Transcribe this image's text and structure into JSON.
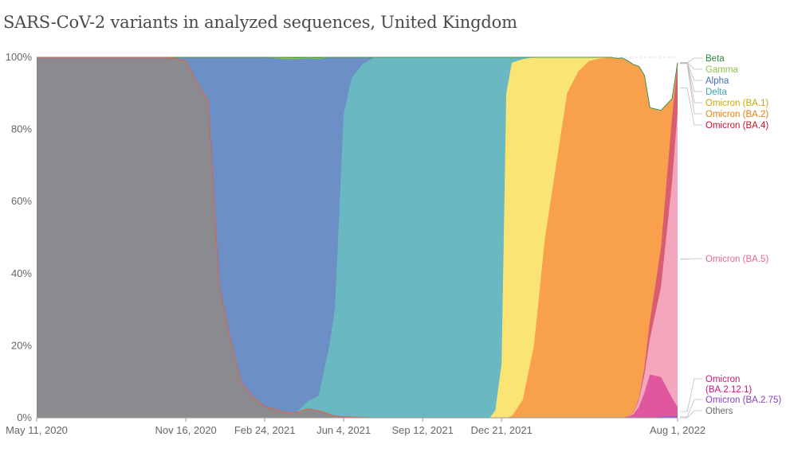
{
  "title": "SARS-CoV-2 variants in analyzed sequences, United Kingdom",
  "chart_data": {
    "type": "area",
    "stacked": true,
    "normalized": true,
    "title": "SARS-CoV-2 variants in analyzed sequences, United Kingdom",
    "y_ticks": [
      "0%",
      "20%",
      "40%",
      "60%",
      "80%",
      "100%"
    ],
    "ylim": [
      0,
      100
    ],
    "x_ticks": [
      {
        "date": "2020-05-11",
        "label": "May 11, 2020"
      },
      {
        "date": "2020-11-16",
        "label": "Nov 16, 2020"
      },
      {
        "date": "2021-02-24",
        "label": "Feb 24, 2021"
      },
      {
        "date": "2021-06-04",
        "label": "Jun 4, 2021"
      },
      {
        "date": "2021-09-12",
        "label": "Sep 12, 2021"
      },
      {
        "date": "2021-12-21",
        "label": "Dec 21, 2021"
      },
      {
        "date": "2022-08-01",
        "label": "Aug 1, 2022"
      }
    ],
    "xlim": [
      "2020-05-11",
      "2022-08-01"
    ],
    "grid": true,
    "legend_position": "right",
    "x": [
      "2020-05-11",
      "2020-06-22",
      "2020-08-03",
      "2020-09-14",
      "2020-10-26",
      "2020-11-16",
      "2020-11-30",
      "2020-12-14",
      "2020-12-28",
      "2021-01-11",
      "2021-01-25",
      "2021-02-08",
      "2021-02-24",
      "2021-03-08",
      "2021-03-22",
      "2021-04-05",
      "2021-04-19",
      "2021-05-03",
      "2021-05-17",
      "2021-05-24",
      "2021-06-04",
      "2021-06-14",
      "2021-06-28",
      "2021-07-12",
      "2021-07-26",
      "2021-08-09",
      "2021-09-12",
      "2021-10-25",
      "2021-11-22",
      "2021-12-06",
      "2021-12-13",
      "2021-12-21",
      "2021-12-27",
      "2022-01-03",
      "2022-01-17",
      "2022-01-31",
      "2022-02-14",
      "2022-02-28",
      "2022-03-14",
      "2022-03-28",
      "2022-04-11",
      "2022-04-25",
      "2022-05-09",
      "2022-05-16",
      "2022-05-23",
      "2022-05-30",
      "2022-06-06",
      "2022-06-13",
      "2022-06-20",
      "2022-06-27",
      "2022-07-11",
      "2022-07-25",
      "2022-08-01"
    ],
    "series": [
      {
        "name": "Others",
        "color": "#8b8b8f",
        "values": [
          100,
          100,
          100,
          100,
          100,
          99,
          93,
          88,
          37,
          22,
          10,
          6,
          3,
          2.5,
          1.5,
          1.5,
          2.5,
          2,
          1,
          0.5,
          0.3,
          0.2,
          0.1,
          0,
          0,
          0,
          0,
          0,
          0,
          0,
          0,
          0,
          0,
          0,
          0,
          0,
          0,
          0,
          0,
          0,
          0,
          0,
          0,
          0,
          0,
          0,
          0,
          0,
          0,
          0,
          0,
          0,
          0
        ]
      },
      {
        "name": "Omicron (BA.2.75)",
        "color": "#9b59d0",
        "values": [
          0,
          0,
          0,
          0,
          0,
          0,
          0,
          0,
          0,
          0,
          0,
          0,
          0,
          0,
          0,
          0,
          0,
          0,
          0,
          0,
          0,
          0,
          0,
          0,
          0,
          0,
          0,
          0,
          0,
          0,
          0,
          0,
          0,
          0,
          0,
          0,
          0,
          0,
          0,
          0,
          0,
          0,
          0,
          0,
          0,
          0,
          0,
          0,
          0,
          0,
          0.3,
          0.5,
          0.5
        ]
      },
      {
        "name": "Omicron (BA.2.12.1)",
        "color": "#e0569f",
        "values": [
          0,
          0,
          0,
          0,
          0,
          0,
          0,
          0,
          0,
          0,
          0,
          0,
          0,
          0,
          0,
          0,
          0,
          0,
          0,
          0,
          0,
          0,
          0,
          0,
          0,
          0,
          0,
          0,
          0,
          0,
          0,
          0,
          0,
          0,
          0,
          0,
          0,
          0,
          0,
          0,
          0,
          0,
          0,
          0,
          0,
          0.3,
          1,
          3,
          7,
          12,
          11,
          5,
          2.5
        ]
      },
      {
        "name": "Omicron (BA.5)",
        "color": "#f4a6bd",
        "values": [
          0,
          0,
          0,
          0,
          0,
          0,
          0,
          0,
          0,
          0,
          0,
          0,
          0,
          0,
          0,
          0,
          0,
          0,
          0,
          0,
          0,
          0,
          0,
          0,
          0,
          0,
          0,
          0,
          0,
          0,
          0,
          0,
          0,
          0,
          0,
          0,
          0,
          0,
          0,
          0,
          0,
          0,
          0,
          0,
          0,
          0.2,
          0.5,
          2,
          5,
          10,
          25,
          60,
          82
        ]
      },
      {
        "name": "Omicron (BA.4)",
        "color": "#d95d70",
        "values": [
          0,
          0,
          0,
          0,
          0,
          0,
          0,
          0,
          0,
          0,
          0,
          0,
          0,
          0,
          0,
          0,
          0,
          0,
          0,
          0,
          0,
          0,
          0,
          0,
          0,
          0,
          0,
          0,
          0,
          0,
          0,
          0,
          0,
          0,
          0,
          0,
          0,
          0,
          0,
          0,
          0,
          0,
          0,
          0,
          0,
          0,
          0,
          0.5,
          2,
          5,
          11,
          18,
          13
        ]
      },
      {
        "name": "Omicron (BA.2)",
        "color": "#f8a04b",
        "values": [
          0,
          0,
          0,
          0,
          0,
          0,
          0,
          0,
          0,
          0,
          0,
          0,
          0,
          0,
          0,
          0,
          0,
          0,
          0,
          0,
          0,
          0,
          0,
          0,
          0,
          0,
          0,
          0,
          0,
          0,
          0,
          0,
          0,
          0.5,
          5,
          20,
          50,
          70,
          90,
          96,
          99,
          99.7,
          100,
          99.7,
          99.8,
          98.5,
          96.5,
          92,
          81,
          59,
          38,
          5,
          0.5
        ]
      },
      {
        "name": "Omicron (BA.1)",
        "color": "#fae474",
        "values": [
          0,
          0,
          0,
          0,
          0,
          0,
          0,
          0,
          0,
          0,
          0,
          0,
          0,
          0,
          0,
          0,
          0,
          0,
          0,
          0,
          0,
          0,
          0,
          0,
          0,
          0,
          0,
          0,
          0,
          0,
          2,
          15,
          90,
          98,
          94.5,
          80,
          50,
          30,
          10,
          4,
          1,
          0.3,
          0,
          0,
          0,
          0,
          0,
          0,
          0,
          0,
          0,
          0,
          0
        ]
      },
      {
        "name": "Delta",
        "color": "#6ab8c2",
        "values": [
          0,
          0,
          0,
          0,
          0,
          0,
          0,
          0,
          0,
          0,
          0,
          0,
          0,
          0,
          0,
          0,
          2,
          4,
          19,
          30,
          84,
          94,
          98,
          99.9,
          100,
          100,
          100,
          100,
          100,
          100,
          98,
          85,
          10,
          1.5,
          0.5,
          0,
          0,
          0,
          0,
          0,
          0,
          0,
          0,
          0,
          0,
          0,
          0,
          0,
          0,
          0,
          0,
          0,
          0
        ]
      },
      {
        "name": "Alpha",
        "color": "#6c8fc6",
        "values": [
          0,
          0,
          0,
          0,
          0,
          1,
          7,
          12,
          63,
          78,
          90,
          94,
          97,
          97.3,
          98,
          98,
          95.2,
          93.5,
          80,
          69.5,
          15.7,
          5.8,
          1.9,
          0.1,
          0,
          0,
          0,
          0,
          0,
          0,
          0,
          0,
          0,
          0,
          0,
          0,
          0,
          0,
          0,
          0,
          0,
          0,
          0,
          0,
          0,
          0,
          0,
          0,
          0,
          0,
          0,
          0,
          0
        ]
      },
      {
        "name": "Gamma",
        "color": "#8bc34a",
        "values": [
          0,
          0,
          0,
          0,
          0,
          0,
          0,
          0,
          0,
          0,
          0,
          0,
          0,
          0.1,
          0.4,
          0.3,
          0.2,
          0.3,
          0.1,
          0,
          0,
          0,
          0,
          0,
          0,
          0,
          0,
          0,
          0,
          0,
          0,
          0,
          0,
          0,
          0,
          0,
          0,
          0,
          0,
          0,
          0,
          0,
          0,
          0,
          0,
          0,
          0,
          0,
          0,
          0,
          0,
          0,
          0
        ]
      },
      {
        "name": "Beta",
        "color": "#2e8b3e",
        "values": [
          0,
          0,
          0,
          0,
          0,
          0,
          0,
          0,
          0,
          0,
          0,
          0,
          0,
          0.1,
          0.1,
          0.2,
          0.1,
          0.2,
          0,
          0,
          0,
          0,
          0,
          0,
          0,
          0,
          0,
          0,
          0,
          0,
          0,
          0,
          0,
          0,
          0,
          0,
          0,
          0,
          0,
          0,
          0,
          0,
          0,
          0,
          0,
          0,
          0,
          0,
          0,
          0,
          0,
          0,
          0
        ]
      }
    ],
    "legend": [
      {
        "label": "Beta",
        "color": "#2e8b3e",
        "series": "Beta"
      },
      {
        "label": "Gamma",
        "color": "#8bc34a",
        "series": "Gamma"
      },
      {
        "label": "Alpha",
        "color": "#3f6fb5",
        "series": "Alpha"
      },
      {
        "label": "Delta",
        "color": "#3ba6b3",
        "series": "Delta"
      },
      {
        "label": "Omicron (BA.1)",
        "color": "#c9a800",
        "series": "Omicron (BA.1)"
      },
      {
        "label": "Omicron (BA.2)",
        "color": "#e67e12",
        "series": "Omicron (BA.2)"
      },
      {
        "label": "Omicron (BA.4)",
        "color": "#c0152f",
        "series": "Omicron (BA.4)"
      },
      {
        "label": "Omicron (BA.5)",
        "color": "#e0698f",
        "series": "Omicron (BA.5)"
      },
      {
        "label": "Omicron (BA.2.12.1)",
        "lines": [
          "Omicron",
          "(BA.2.12.1)"
        ],
        "color": "#c2187b",
        "series": "Omicron (BA.2.12.1)"
      },
      {
        "label": "Omicron (BA.2.75)",
        "color": "#8a3fc0",
        "series": "Omicron (BA.2.75)"
      },
      {
        "label": "Others",
        "color": "#6b6b6b",
        "series": "Others"
      }
    ]
  }
}
